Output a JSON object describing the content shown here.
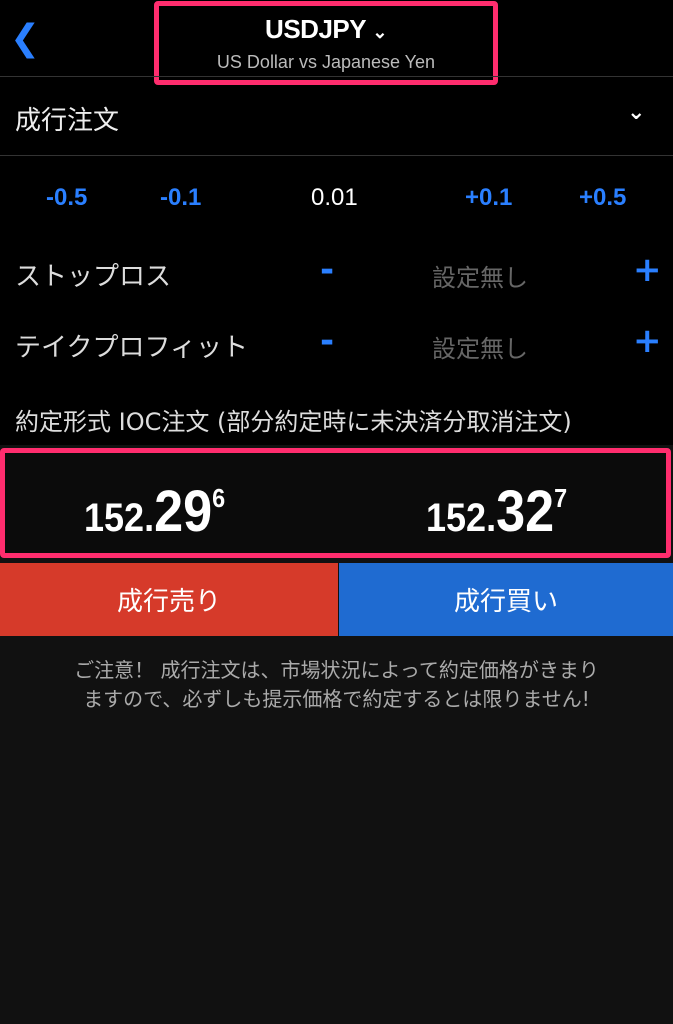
{
  "header": {
    "symbol": "USDJPY",
    "description": "US Dollar vs Japanese Yen"
  },
  "order_type": {
    "selected": "成行注文"
  },
  "lot": {
    "minus_large": "-0.5",
    "minus_small": "-0.1",
    "value": "0.01",
    "plus_small": "+0.1",
    "plus_large": "+0.5"
  },
  "stop_loss": {
    "label": "ストップロス",
    "minus": "-",
    "value": "設定無し",
    "plus": "+"
  },
  "take_profit": {
    "label": "テイクプロフィット",
    "minus": "-",
    "value": "設定無し",
    "plus": "+"
  },
  "execution": {
    "text": "約定形式 IOC注文 (部分約定時に未決済分取消注文)"
  },
  "prices": {
    "bid": {
      "prefix": "152.",
      "main": "29",
      "pip": "6"
    },
    "ask": {
      "prefix": "152.",
      "main": "32",
      "pip": "7"
    }
  },
  "buttons": {
    "sell": "成行売り",
    "buy": "成行買い"
  },
  "notice": {
    "line1": "ご注意！ 成行注文は、市場状況によって約定価格がきまり",
    "line2": "ますので、必ずしも提示価格で約定するとは限りません!"
  },
  "colors": {
    "accent": "#2a7fff",
    "sell": "#d63a2a",
    "buy": "#1f6bd1",
    "highlight": "#ff2d6e"
  }
}
